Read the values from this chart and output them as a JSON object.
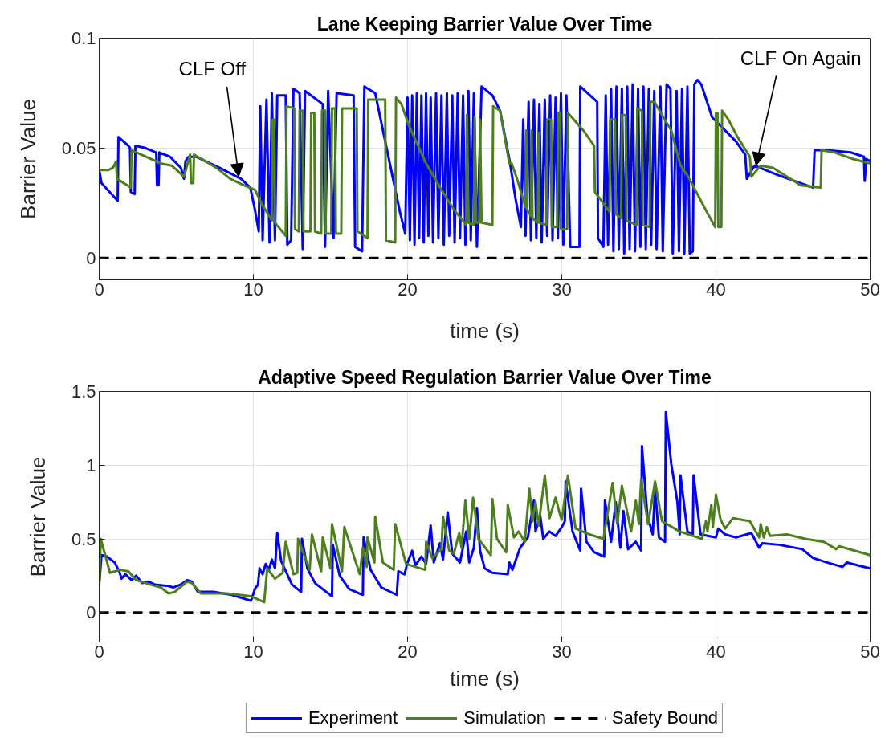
{
  "chart_data": [
    {
      "type": "line",
      "title": "Lane Keeping Barrier Value Over Time",
      "xlabel": "time (s)",
      "ylabel": "Barrier Value",
      "xlim": [
        0,
        50
      ],
      "xticks": [
        0,
        10,
        20,
        30,
        40,
        50
      ],
      "ylim": [
        -0.01,
        0.1
      ],
      "yticks": [
        0,
        0.05,
        0.1
      ],
      "grid": true,
      "series": [
        {
          "color": "#0000ff",
          "x": [
            0,
            0.15,
            1.2,
            1.25,
            1.9,
            2.0,
            2.05,
            2.3,
            2.35,
            3.0,
            3.7,
            3.75,
            3.85,
            3.9,
            4.6,
            5.3,
            5.5,
            5.6,
            5.8,
            6.3,
            7.8,
            9.2,
            9.8,
            10.1,
            10.35,
            10.45,
            10.6,
            10.85,
            11.05,
            11.2,
            11.4,
            11.55,
            12.1,
            12.2,
            12.45,
            12.6,
            13.0,
            13.2,
            13.35,
            14.5,
            14.65,
            14.85,
            15.2,
            15.4,
            16.5,
            16.6,
            17.05,
            17.2,
            17.9,
            19.5,
            19.85,
            20.0,
            20.15,
            20.3,
            20.45,
            20.6,
            20.75,
            20.9,
            21.05,
            21.2,
            21.35,
            21.5,
            21.65,
            21.85,
            22.0,
            22.2,
            22.35,
            22.55,
            22.7,
            22.9,
            23.05,
            23.25,
            23.4,
            23.6,
            23.75,
            23.95,
            24.1,
            24.3,
            24.5,
            24.8,
            25.5,
            26.0,
            26.65,
            27.0,
            27.35,
            27.5,
            27.65,
            27.85,
            28.0,
            28.2,
            28.35,
            28.55,
            28.7,
            28.9,
            29.05,
            29.25,
            29.4,
            29.6,
            29.75,
            29.95,
            30.1,
            30.3,
            30.55,
            31.15,
            31.2,
            32.3,
            32.35,
            32.7,
            32.85,
            33.0,
            33.2,
            33.35,
            33.55,
            33.7,
            33.9,
            34.05,
            34.25,
            34.4,
            34.6,
            34.75,
            34.95,
            35.1,
            35.3,
            35.45,
            35.65,
            35.8,
            36.0,
            36.15,
            36.4,
            36.55,
            36.8,
            37.05,
            37.2,
            37.45,
            37.6,
            37.8,
            37.95,
            38.15,
            38.3,
            38.5,
            38.6,
            38.8,
            39.05,
            39.75,
            41.3,
            41.9,
            42.0,
            42.5,
            43.9,
            46.3,
            46.4,
            47.2,
            48.75,
            49.6,
            49.65,
            49.75,
            50
          ],
          "values": [
            0.04,
            0.034,
            0.026,
            0.055,
            0.051,
            0.05,
            0.03,
            0.029,
            0.051,
            0.05,
            0.048,
            0.033,
            0.033,
            0.048,
            0.046,
            0.041,
            0.036,
            0.044,
            0.046,
            0.046,
            0.041,
            0.036,
            0.032,
            0.022,
            0.012,
            0.069,
            0.008,
            0.072,
            0.007,
            0.075,
            0.008,
            0.074,
            0.074,
            0.006,
            0.008,
            0.077,
            0.075,
            0.004,
            0.076,
            0.07,
            0.005,
            0.076,
            0.009,
            0.075,
            0.074,
            0.005,
            0.003,
            0.078,
            0.075,
            0.021,
            0.011,
            0.073,
            0.008,
            0.074,
            0.006,
            0.075,
            0.009,
            0.074,
            0.007,
            0.075,
            0.01,
            0.073,
            0.007,
            0.075,
            0.009,
            0.074,
            0.006,
            0.075,
            0.01,
            0.074,
            0.007,
            0.075,
            0.009,
            0.074,
            0.006,
            0.076,
            0.008,
            0.075,
            0.005,
            0.078,
            0.074,
            0.067,
            0.043,
            0.027,
            0.014,
            0.063,
            0.01,
            0.071,
            0.008,
            0.072,
            0.009,
            0.07,
            0.007,
            0.072,
            0.01,
            0.074,
            0.008,
            0.073,
            0.009,
            0.075,
            0.006,
            0.074,
            0.005,
            0.005,
            0.078,
            0.071,
            0.009,
            0.005,
            0.074,
            0.006,
            0.077,
            0.003,
            0.078,
            0.004,
            0.077,
            0.002,
            0.078,
            0.004,
            0.079,
            0.003,
            0.077,
            0.005,
            0.078,
            0.004,
            0.077,
            0.006,
            0.076,
            0.004,
            0.078,
            0.003,
            0.079,
            0.077,
            0.002,
            0.076,
            0.003,
            0.077,
            0.002,
            0.078,
            0.002,
            0.003,
            0.079,
            0.081,
            0.079,
            0.064,
            0.053,
            0.047,
            0.036,
            0.042,
            0.038,
            0.032,
            0.049,
            0.049,
            0.048,
            0.046,
            0.035,
            0.045,
            0.044
          ]
        },
        {
          "color": "#4d7f1f",
          "x": [
            0,
            0.6,
            0.9,
            1.1,
            1.15,
            2.05,
            2.1,
            4.0,
            4.7,
            5.5,
            5.9,
            5.95,
            6.1,
            6.15,
            7.6,
            8.5,
            9.4,
            10.1,
            10.6,
            11.2,
            11.25,
            11.35,
            11.4,
            12.1,
            12.15,
            12.65,
            12.7,
            12.95,
            13.0,
            13.2,
            13.25,
            13.7,
            13.75,
            13.95,
            14.0,
            14.4,
            14.45,
            14.65,
            14.7,
            15.05,
            15.1,
            15.3,
            15.35,
            15.7,
            15.75,
            16.7,
            16.75,
            17.4,
            17.45,
            18.55,
            18.6,
            19.2,
            19.25,
            19.6,
            20.1,
            21.2,
            22.2,
            23.0,
            23.8,
            23.85,
            23.95,
            24.3,
            24.35,
            24.45,
            24.65,
            24.7,
            24.8,
            25.5,
            25.55,
            26.0,
            26.6,
            26.75,
            27.1,
            27.65,
            27.7,
            27.75,
            28.0,
            28.05,
            28.1,
            28.45,
            28.5,
            28.55,
            29.0,
            29.05,
            29.3,
            29.35,
            29.7,
            29.75,
            29.9,
            29.95,
            30.35,
            30.4,
            31.4,
            32.1,
            32.15,
            33.1,
            33.15,
            33.45,
            33.5,
            33.85,
            33.9,
            34.15,
            34.2,
            34.85,
            34.9,
            35.2,
            35.25,
            35.7,
            35.75,
            36.0,
            37.1,
            37.7,
            38.2,
            39.4,
            39.95,
            40.0,
            40.1,
            40.15,
            40.35,
            40.4,
            40.8,
            41.4,
            42.2,
            42.3,
            42.9,
            43.7,
            45.5,
            46.8,
            46.85,
            47.7,
            48.9,
            50
          ],
          "values": [
            0.04,
            0.04,
            0.041,
            0.044,
            0.036,
            0.032,
            0.049,
            0.043,
            0.042,
            0.037,
            0.047,
            0.034,
            0.034,
            0.047,
            0.041,
            0.036,
            0.033,
            0.031,
            0.024,
            0.017,
            0.063,
            0.063,
            0.016,
            0.01,
            0.069,
            0.068,
            0.013,
            0.012,
            0.067,
            0.067,
            0.012,
            0.012,
            0.066,
            0.066,
            0.012,
            0.011,
            0.067,
            0.067,
            0.011,
            0.011,
            0.068,
            0.068,
            0.011,
            0.011,
            0.068,
            0.068,
            0.012,
            0.009,
            0.072,
            0.072,
            0.008,
            0.007,
            0.073,
            0.07,
            0.06,
            0.043,
            0.031,
            0.022,
            0.015,
            0.065,
            0.016,
            0.015,
            0.064,
            0.016,
            0.016,
            0.063,
            0.016,
            0.015,
            0.069,
            0.067,
            0.043,
            0.043,
            0.036,
            0.023,
            0.058,
            0.022,
            0.019,
            0.058,
            0.018,
            0.016,
            0.057,
            0.016,
            0.015,
            0.063,
            0.063,
            0.014,
            0.014,
            0.066,
            0.066,
            0.013,
            0.013,
            0.066,
            0.058,
            0.051,
            0.03,
            0.021,
            0.063,
            0.063,
            0.02,
            0.018,
            0.065,
            0.065,
            0.017,
            0.015,
            0.068,
            0.067,
            0.015,
            0.014,
            0.071,
            0.071,
            0.058,
            0.042,
            0.037,
            0.021,
            0.014,
            0.066,
            0.066,
            0.014,
            0.014,
            0.067,
            0.063,
            0.055,
            0.046,
            0.037,
            0.042,
            0.041,
            0.033,
            0.032,
            0.049,
            0.048,
            0.045,
            0.043
          ]
        }
      ],
      "ref_lines": [
        {
          "axis": "y",
          "value": 0,
          "color": "#000000",
          "line_style": "dashed"
        }
      ],
      "annotations": [
        {
          "text": "CLF Off",
          "x": 9.05,
          "y": 0.037
        },
        {
          "text": "CLF On Again",
          "x": 42.6,
          "y": 0.042
        }
      ]
    },
    {
      "type": "line",
      "title": "Adaptive Speed Regulation Barrier Value Over Time",
      "xlabel": "time (s)",
      "ylabel": "Barrier Value",
      "xlim": [
        0,
        50
      ],
      "xticks": [
        0,
        10,
        20,
        30,
        40,
        50
      ],
      "ylim": [
        -0.2,
        1.5
      ],
      "yticks": [
        0,
        0.5,
        1,
        1.5
      ],
      "grid": true,
      "legend": "bottom",
      "series": [
        {
          "name": "Experiment",
          "color": "#0000ff",
          "x": [
            0,
            0.15,
            0.5,
            1.0,
            1.3,
            1.45,
            1.7,
            2.1,
            2.4,
            2.8,
            3.2,
            3.6,
            4.5,
            4.8,
            5.3,
            5.7,
            6.0,
            6.4,
            7.4,
            8.6,
            9.85,
            10.1,
            10.3,
            10.4,
            10.6,
            10.8,
            11.0,
            11.2,
            11.4,
            11.55,
            11.8,
            12.5,
            13.1,
            13.15,
            13.5,
            14.0,
            15.1,
            15.15,
            15.6,
            16.2,
            17.1,
            17.15,
            17.6,
            18.3,
            19.3,
            19.4,
            19.8,
            20.0,
            20.3,
            20.5,
            20.9,
            21.2,
            21.5,
            21.7,
            22.1,
            22.3,
            22.6,
            22.9,
            23.4,
            23.8,
            24.0,
            24.3,
            24.5,
            24.7,
            25.0,
            25.5,
            26.5,
            26.6,
            26.8,
            27.3,
            27.8,
            28.2,
            28.3,
            28.6,
            28.8,
            29.2,
            29.6,
            30.0,
            30.2,
            30.25,
            30.7,
            31.2,
            31.25,
            31.6,
            32.1,
            32.75,
            32.8,
            33.2,
            33.5,
            33.8,
            34.0,
            34.3,
            34.8,
            35.15,
            35.2,
            35.55,
            35.9,
            36.05,
            36.3,
            36.7,
            36.75,
            37.1,
            37.5,
            37.65,
            37.7,
            38.15,
            38.5,
            38.55,
            39.0,
            40.0,
            40.15,
            40.6,
            41.3,
            42.3,
            42.8,
            43.0,
            44.1,
            45.6,
            46.3,
            47.2,
            48.2,
            48.5,
            49.2,
            50
          ],
          "values": [
            0.19,
            0.39,
            0.38,
            0.34,
            0.28,
            0.23,
            0.26,
            0.22,
            0.25,
            0.2,
            0.21,
            0.19,
            0.18,
            0.17,
            0.19,
            0.22,
            0.21,
            0.14,
            0.14,
            0.12,
            0.08,
            0.16,
            0.19,
            0.3,
            0.26,
            0.33,
            0.29,
            0.36,
            0.3,
            0.54,
            0.35,
            0.19,
            0.14,
            0.5,
            0.3,
            0.2,
            0.11,
            0.46,
            0.25,
            0.16,
            0.12,
            0.51,
            0.29,
            0.17,
            0.12,
            0.28,
            0.26,
            0.34,
            0.42,
            0.32,
            0.38,
            0.33,
            0.59,
            0.34,
            0.47,
            0.36,
            0.68,
            0.4,
            0.34,
            0.55,
            0.34,
            0.44,
            0.71,
            0.42,
            0.3,
            0.27,
            0.26,
            0.34,
            0.29,
            0.44,
            0.51,
            0.76,
            0.55,
            0.66,
            0.5,
            0.55,
            0.52,
            0.58,
            0.62,
            0.89,
            0.55,
            0.42,
            0.84,
            0.48,
            0.41,
            0.38,
            0.76,
            0.48,
            0.75,
            0.44,
            0.69,
            0.43,
            0.48,
            0.42,
            1.13,
            0.66,
            0.53,
            0.84,
            0.51,
            0.48,
            1.36,
            1.01,
            0.75,
            0.53,
            0.93,
            0.55,
            0.53,
            0.93,
            0.53,
            0.51,
            0.57,
            0.53,
            0.51,
            0.54,
            0.44,
            0.47,
            0.46,
            0.43,
            0.37,
            0.34,
            0.31,
            0.34,
            0.32,
            0.3
          ]
        },
        {
          "name": "Simulation",
          "color": "#4d7f1f",
          "x": [
            0,
            0.1,
            0.7,
            1.35,
            1.9,
            2.4,
            3.3,
            4.0,
            4.5,
            4.9,
            5.7,
            6.0,
            6.6,
            8.3,
            9.85,
            10.7,
            10.9,
            11.4,
            11.9,
            12.1,
            12.6,
            12.85,
            12.9,
            13.65,
            13.8,
            14.4,
            14.5,
            15.0,
            15.1,
            15.75,
            15.9,
            16.9,
            17.1,
            17.35,
            17.4,
            17.85,
            17.9,
            18.4,
            19.1,
            19.2,
            19.9,
            21.15,
            21.2,
            21.6,
            21.9,
            22.2,
            22.3,
            22.7,
            23.0,
            23.35,
            23.5,
            23.75,
            24.0,
            24.25,
            24.6,
            25.4,
            25.5,
            25.8,
            26.4,
            26.5,
            26.9,
            27.2,
            27.6,
            27.9,
            28.1,
            28.3,
            28.5,
            28.9,
            29.2,
            29.6,
            29.9,
            30.0,
            30.4,
            30.9,
            31.8,
            32.7,
            33.3,
            33.6,
            33.9,
            34.5,
            34.8,
            35.0,
            35.15,
            35.6,
            36.05,
            36.5,
            37.65,
            39.1,
            39.35,
            39.45,
            39.7,
            39.8,
            40.0,
            40.3,
            40.6,
            41.1,
            42.2,
            42.8,
            42.9,
            43.1,
            43.3,
            43.5,
            44.6,
            45.8,
            47.0,
            47.8,
            48.0,
            50
          ],
          "values": [
            0.2,
            0.5,
            0.27,
            0.29,
            0.28,
            0.22,
            0.19,
            0.17,
            0.13,
            0.14,
            0.21,
            0.2,
            0.13,
            0.13,
            0.11,
            0.07,
            0.3,
            0.23,
            0.27,
            0.48,
            0.26,
            0.27,
            0.5,
            0.29,
            0.53,
            0.28,
            0.51,
            0.3,
            0.6,
            0.28,
            0.58,
            0.26,
            0.44,
            0.31,
            0.51,
            0.34,
            0.65,
            0.34,
            0.29,
            0.6,
            0.33,
            0.29,
            0.48,
            0.37,
            0.4,
            0.43,
            0.65,
            0.42,
            0.4,
            0.54,
            0.44,
            0.76,
            0.5,
            0.78,
            0.5,
            0.39,
            0.77,
            0.5,
            0.41,
            0.73,
            0.51,
            0.55,
            0.48,
            0.84,
            0.62,
            0.75,
            0.59,
            0.93,
            0.64,
            0.78,
            0.66,
            0.63,
            0.93,
            0.57,
            0.53,
            0.5,
            0.88,
            0.6,
            0.86,
            0.55,
            0.76,
            0.6,
            0.9,
            0.6,
            0.89,
            0.62,
            0.55,
            0.5,
            0.62,
            0.55,
            0.73,
            0.58,
            0.8,
            0.63,
            0.57,
            0.64,
            0.62,
            0.51,
            0.6,
            0.51,
            0.58,
            0.52,
            0.53,
            0.5,
            0.48,
            0.43,
            0.45,
            0.39
          ]
        }
      ],
      "ref_lines": [
        {
          "axis": "y",
          "value": 0,
          "label": "Safety Bound",
          "color": "#000000",
          "line_style": "dashed"
        }
      ]
    }
  ]
}
